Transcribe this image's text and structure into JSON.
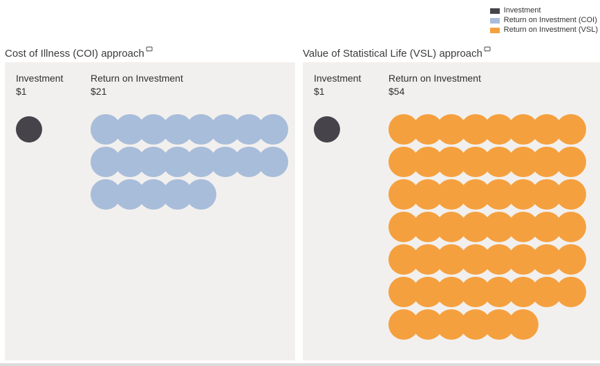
{
  "chart_data": {
    "type": "pictogram",
    "description": "Return on investment per $1 invested, shown as one circle per dollar",
    "unit_value_dollars": 1,
    "units_per_row": 8,
    "legend": [
      {
        "label": "Investment",
        "color": "#46434a"
      },
      {
        "label": "Return on Investment (COI)",
        "color": "#a8bdda"
      },
      {
        "label": "Return on Investment (VSL)",
        "color": "#f5a03f"
      }
    ],
    "panels": [
      {
        "title": "Cost of Illness (COI) approach",
        "investment_label": "Investment",
        "investment_value": "$1",
        "investment_units": 1,
        "return_label": "Return on Investment",
        "return_value": "$21",
        "return_units": 21,
        "rows": [
          8,
          8,
          5
        ],
        "color": "#a8bdda"
      },
      {
        "title": "Value of Statistical Life (VSL) approach",
        "investment_label": "Investment",
        "investment_value": "$1",
        "investment_units": 1,
        "return_label": "Return on Investment",
        "return_value": "$54",
        "return_units": 54,
        "rows": [
          8,
          8,
          8,
          8,
          8,
          8,
          6
        ],
        "color": "#f5a03f"
      }
    ]
  }
}
